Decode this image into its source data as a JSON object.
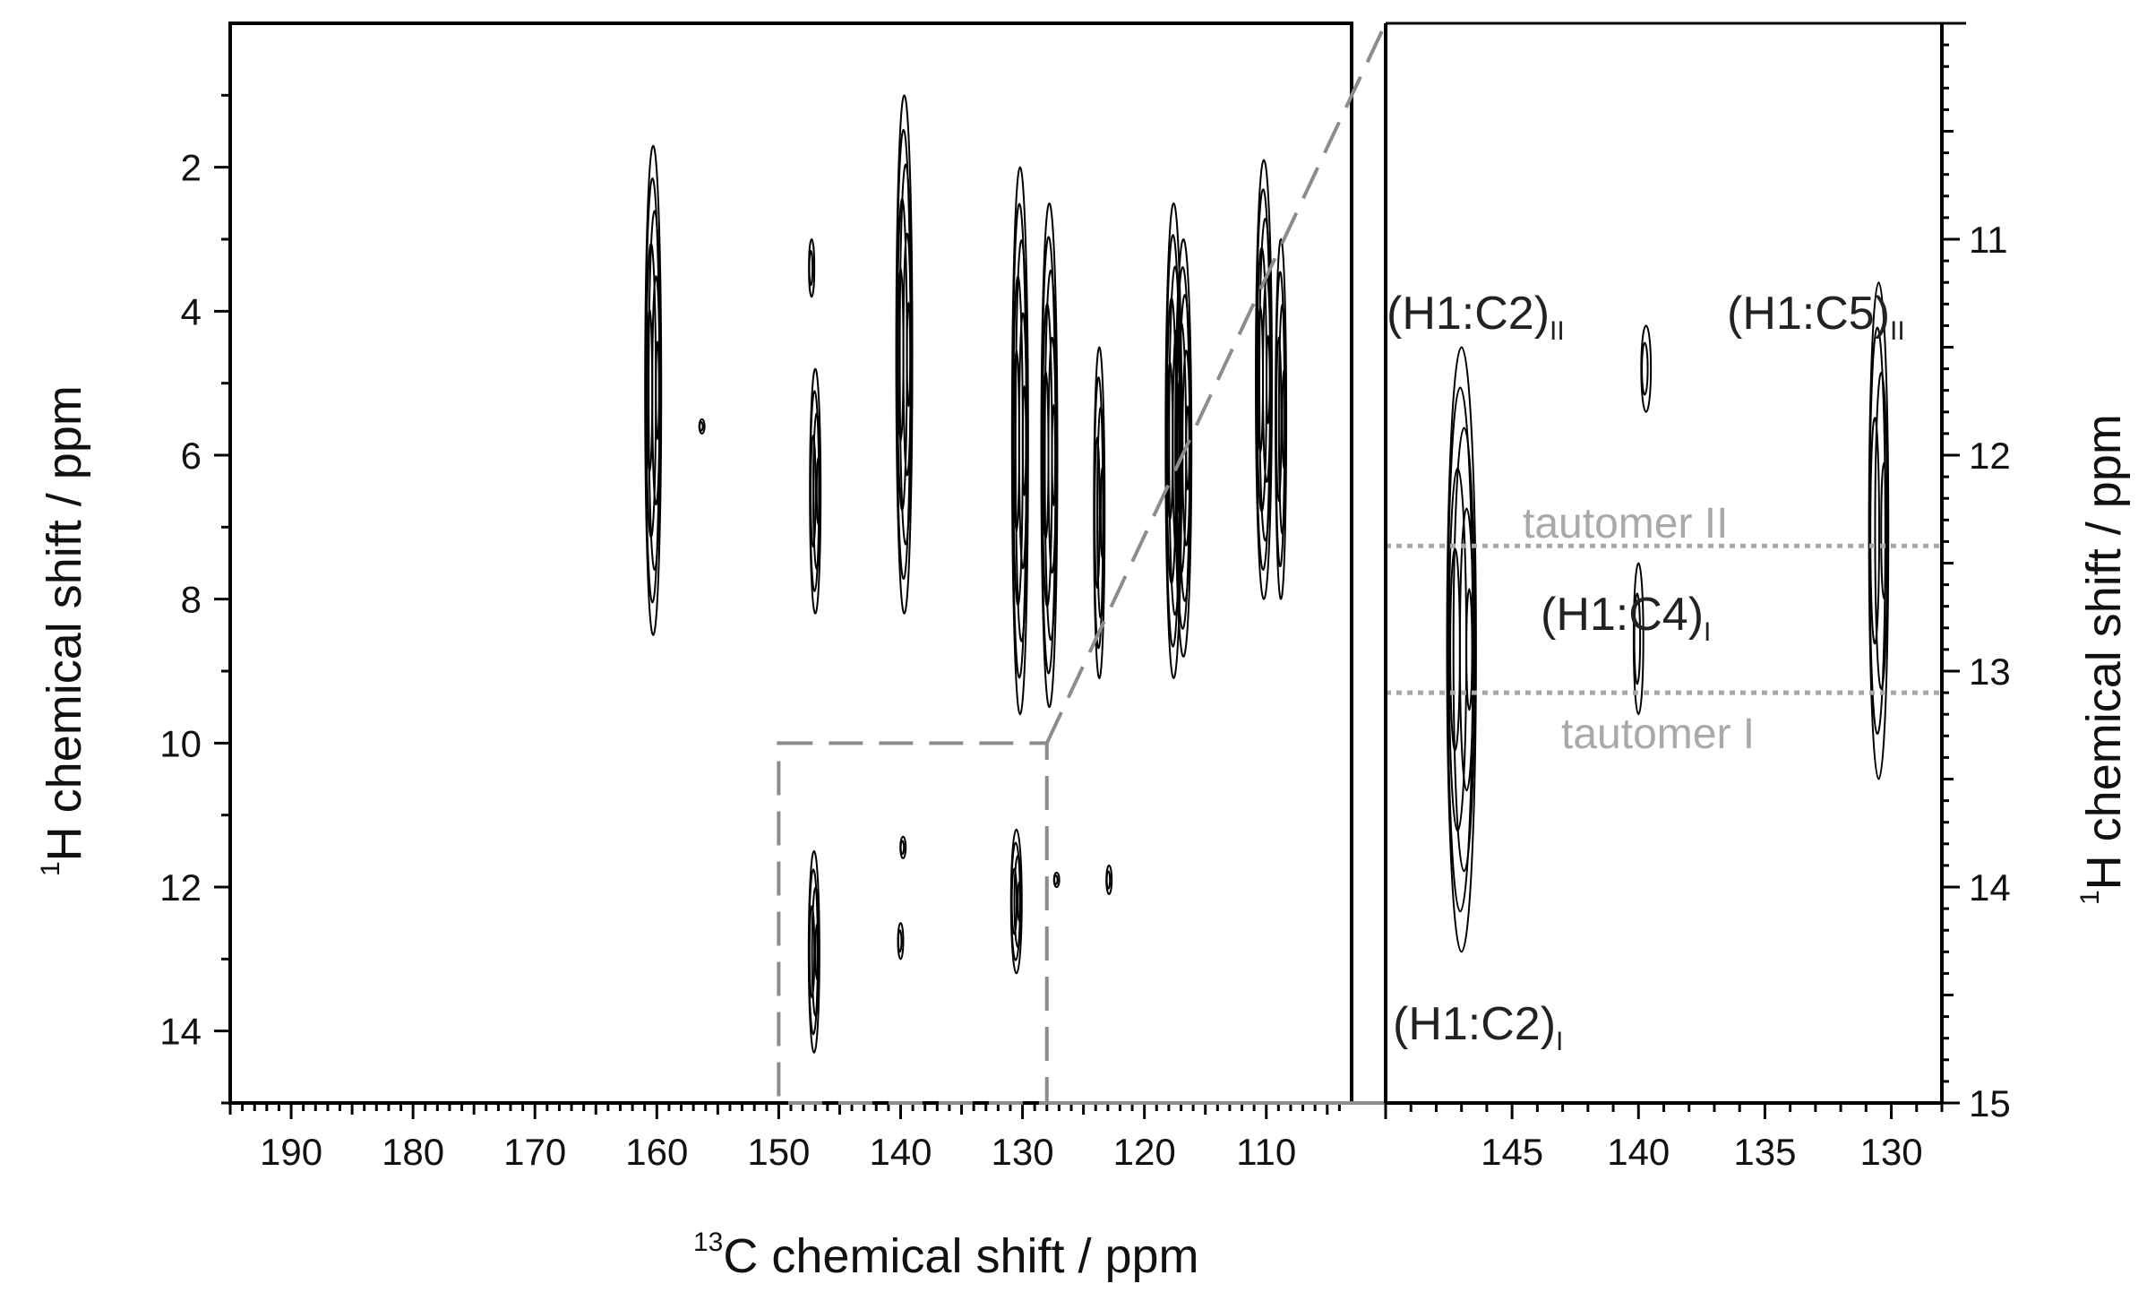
{
  "chart_data": [
    {
      "type": "heatmap",
      "subtype": "2D NMR contour plot",
      "xlabel": {
        "superscript": "13",
        "text": "C chemical shift / ppm"
      },
      "ylabel": {
        "superscript": "1",
        "text": "H chemical shift / ppm"
      },
      "xlim": [
        195,
        103
      ],
      "ylim": [
        15,
        0
      ],
      "x_tick_labels": [
        "190",
        "180",
        "170",
        "160",
        "150",
        "140",
        "130",
        "120",
        "110"
      ],
      "y_tick_labels": [
        "2",
        "4",
        "6",
        "8",
        "10",
        "12",
        "14"
      ],
      "peaks": [
        {
          "x": 160.3,
          "y": 5.1,
          "y_range": [
            1.7,
            8.5
          ],
          "intensity": "strong"
        },
        {
          "x": 147.0,
          "y": 6.5,
          "y_range": [
            4.8,
            8.2
          ],
          "intensity": "medium"
        },
        {
          "x": 147.3,
          "y": 3.4,
          "y_range": [
            3.0,
            3.8
          ],
          "intensity": "weak"
        },
        {
          "x": 139.7,
          "y": 4.6,
          "y_range": [
            1.0,
            8.2
          ],
          "intensity": "strong"
        },
        {
          "x": 130.2,
          "y": 6.0,
          "y_range": [
            2.0,
            9.6
          ],
          "intensity": "strong"
        },
        {
          "x": 127.8,
          "y": 6.0,
          "y_range": [
            2.5,
            9.5
          ],
          "intensity": "strong"
        },
        {
          "x": 123.7,
          "y": 7.0,
          "y_range": [
            4.5,
            9.1
          ],
          "intensity": "medium"
        },
        {
          "x": 117.6,
          "y": 6.0,
          "y_range": [
            2.5,
            9.1
          ],
          "intensity": "strong"
        },
        {
          "x": 116.8,
          "y": 6.2,
          "y_range": [
            3.0,
            8.8
          ],
          "intensity": "strong"
        },
        {
          "x": 110.2,
          "y": 5.4,
          "y_range": [
            1.9,
            8.0
          ],
          "intensity": "strong"
        },
        {
          "x": 108.8,
          "y": 5.5,
          "y_range": [
            3.0,
            8.0
          ],
          "intensity": "medium"
        },
        {
          "x": 156.3,
          "y": 5.6,
          "y_range": [
            5.5,
            5.7
          ],
          "intensity": "weak"
        },
        {
          "x": 147.1,
          "y": 12.8,
          "y_range": [
            11.5,
            14.3
          ],
          "intensity": "medium"
        },
        {
          "x": 140.0,
          "y": 12.7,
          "y_range": [
            12.5,
            13.0
          ],
          "intensity": "weak"
        },
        {
          "x": 139.8,
          "y": 11.5,
          "y_range": [
            11.3,
            11.6
          ],
          "intensity": "weak"
        },
        {
          "x": 130.5,
          "y": 12.2,
          "y_range": [
            11.2,
            13.2
          ],
          "intensity": "medium"
        },
        {
          "x": 122.9,
          "y": 11.9,
          "y_range": [
            11.7,
            12.1
          ],
          "intensity": "weak"
        },
        {
          "x": 127.2,
          "y": 11.9,
          "y_range": [
            11.8,
            12.0
          ],
          "intensity": "weak"
        }
      ],
      "inset_region": {
        "x": [
          150,
          128
        ],
        "y": [
          10,
          15
        ]
      }
    },
    {
      "type": "heatmap",
      "subtype": "2D NMR contour plot (expanded region)",
      "ylabel": {
        "superscript": "1",
        "text": "H chemical shift / ppm"
      },
      "xlim": [
        150,
        128
      ],
      "ylim": [
        15,
        10
      ],
      "x_tick_labels": [
        "145",
        "140",
        "135",
        "130"
      ],
      "y_tick_labels": [
        "11",
        "12",
        "13",
        "14",
        "15"
      ],
      "peaks": [
        {
          "x": 147.0,
          "y": 12.9,
          "y_range": [
            11.5,
            14.3
          ],
          "intensity": "strong"
        },
        {
          "x": 140.0,
          "y": 12.9,
          "y_range": [
            12.5,
            13.2
          ],
          "intensity": "weak"
        },
        {
          "x": 139.7,
          "y": 11.6,
          "y_range": [
            11.4,
            11.8
          ],
          "intensity": "weak"
        },
        {
          "x": 130.5,
          "y": 12.3,
          "y_range": [
            11.2,
            13.5
          ],
          "intensity": "medium"
        }
      ],
      "reference_lines": [
        {
          "y": 12.42,
          "label": "tautomer II"
        },
        {
          "y": 13.1,
          "label": "tautomer I"
        }
      ],
      "annotations": [
        {
          "text": "(H1:C2)",
          "subscript": "II"
        },
        {
          "text": "(H1:C5)",
          "subscript": "II"
        },
        {
          "text": "(H1:C4)",
          "subscript": "I"
        },
        {
          "text": "(H1:C2)",
          "subscript": "I"
        }
      ]
    }
  ]
}
